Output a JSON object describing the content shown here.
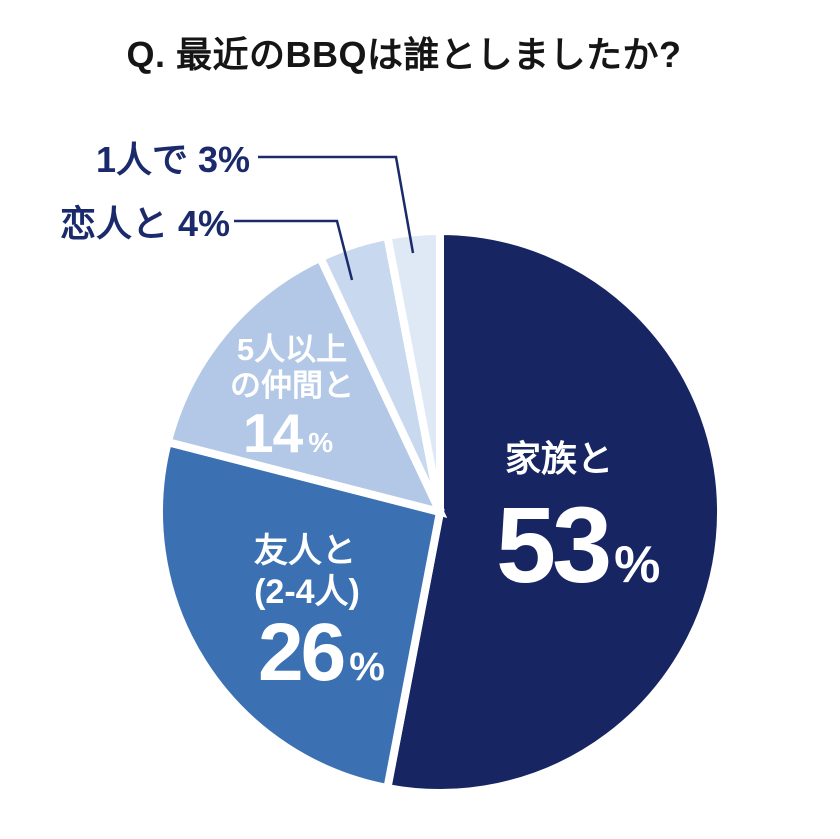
{
  "title": "Q. 最近のBBQは誰としましたか?",
  "colors": {
    "background": "#ffffff",
    "title_text": "#151515",
    "callout_text": "#1b2a6b",
    "callout_line": "#1b2a6b",
    "slice_label_text": "#ffffff",
    "slice_separator": "#ffffff"
  },
  "chart_data": {
    "type": "pie",
    "title": "Q. 最近のBBQは誰としましたか?",
    "unit": "%",
    "start_angle_deg": 0,
    "direction": "clockwise",
    "total": 100,
    "slices": [
      {
        "id": "family",
        "label": "家族と",
        "value": 53,
        "color": "#172562",
        "label_lines": [
          "家族と"
        ],
        "value_display": "53",
        "label_position": "inside"
      },
      {
        "id": "friends",
        "label": "友人と(2-4人)",
        "value": 26,
        "color": "#3b71b3",
        "label_lines": [
          "友人と",
          "(2-4人)"
        ],
        "value_display": "26",
        "label_position": "inside"
      },
      {
        "id": "group5plus",
        "label": "5人以上の仲間と",
        "value": 14,
        "color": "#b2c8e6",
        "label_lines": [
          "5人以上",
          "の仲間と"
        ],
        "value_display": "14",
        "label_position": "inside"
      },
      {
        "id": "partner",
        "label": "恋人と",
        "value": 4,
        "color": "#c8d8ee",
        "label_lines": [],
        "value_display": "4",
        "label_position": "callout"
      },
      {
        "id": "alone",
        "label": "1人で",
        "value": 3,
        "color": "#dfe9f6",
        "label_lines": [],
        "value_display": "3",
        "label_position": "callout"
      }
    ],
    "callouts": [
      {
        "for": "alone",
        "text": "1人で 3%"
      },
      {
        "for": "partner",
        "text": "恋人と 4%"
      }
    ],
    "legend": "none",
    "grid": "off"
  }
}
